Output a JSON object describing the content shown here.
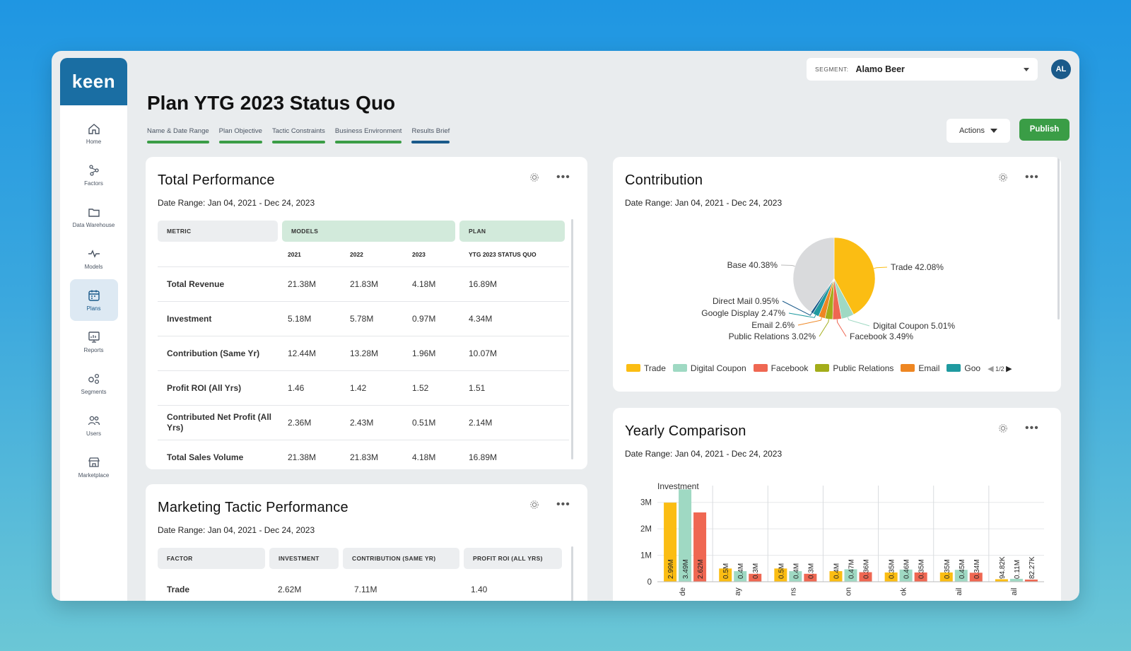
{
  "app": {
    "logo": "keen",
    "title": "Plan YTG 2023 Status Quo"
  },
  "sidebar": {
    "items": [
      {
        "label": "Home",
        "icon": "home-icon"
      },
      {
        "label": "Factors",
        "icon": "factors-icon"
      },
      {
        "label": "Data Warehouse",
        "icon": "folder-icon"
      },
      {
        "label": "Models",
        "icon": "pulse-icon"
      },
      {
        "label": "Plans",
        "icon": "calendar-icon",
        "active": true
      },
      {
        "label": "Reports",
        "icon": "report-icon"
      },
      {
        "label": "Segments",
        "icon": "segments-icon"
      },
      {
        "label": "Users",
        "icon": "users-icon"
      },
      {
        "label": "Marketplace",
        "icon": "store-icon"
      }
    ]
  },
  "steps": [
    {
      "label": "Name & Date Range",
      "status": "complete"
    },
    {
      "label": "Plan Objective",
      "status": "complete"
    },
    {
      "label": "Tactic Constraints",
      "status": "complete"
    },
    {
      "label": "Business Environment",
      "status": "complete"
    },
    {
      "label": "Results Brief",
      "status": "current"
    }
  ],
  "header": {
    "segment_label": "SEGMENT:",
    "segment_value": "Alamo Beer",
    "avatar": "AL",
    "actions_label": "Actions",
    "publish_label": "Publish"
  },
  "total_performance": {
    "title": "Total Performance",
    "date_range": "Date Range: Jan 04, 2021 - Dec 24, 2023",
    "headers": {
      "metric": "METRIC",
      "models": "MODELS",
      "plan": "PLAN"
    },
    "subheaders": [
      "2021",
      "2022",
      "2023",
      "YTG 2023 STATUS QUO"
    ],
    "rows": [
      {
        "metric": "Total Revenue",
        "values": [
          "21.38M",
          "21.83M",
          "4.18M",
          "16.89M"
        ]
      },
      {
        "metric": "Investment",
        "values": [
          "5.18M",
          "5.78M",
          "0.97M",
          "4.34M"
        ]
      },
      {
        "metric": "Contribution (Same Yr)",
        "values": [
          "12.44M",
          "13.28M",
          "1.96M",
          "10.07M"
        ]
      },
      {
        "metric": "Profit ROI (All Yrs)",
        "values": [
          "1.46",
          "1.42",
          "1.52",
          "1.51"
        ]
      },
      {
        "metric": "Contributed Net Profit (All Yrs)",
        "values": [
          "2.36M",
          "2.43M",
          "0.51M",
          "2.14M"
        ]
      },
      {
        "metric": "Total Sales Volume",
        "values": [
          "21.38M",
          "21.83M",
          "4.18M",
          "16.89M"
        ]
      }
    ]
  },
  "marketing": {
    "title": "Marketing Tactic Performance",
    "date_range": "Date Range: Jan 04, 2021 - Dec 24, 2023",
    "headers": [
      "FACTOR",
      "INVESTMENT",
      "CONTRIBUTION (SAME YR)",
      "PROFIT ROI (ALL YRS)"
    ],
    "first_row": [
      "Trade",
      "2.62M",
      "7.11M",
      "1.40"
    ]
  },
  "contribution": {
    "title": "Contribution",
    "date_range": "Date Range: Jan 04, 2021 - Dec 24, 2023",
    "legend_page": "1/2",
    "legend": [
      "Trade",
      "Digital Coupon",
      "Facebook",
      "Public Relations",
      "Email",
      "Goo"
    ]
  },
  "yearly": {
    "title": "Yearly Comparison",
    "date_range": "Date Range: Jan 04, 2021 - Dec 24, 2023"
  },
  "colors": {
    "trade": "#fbbd13",
    "digital_coupon": "#9fd9c3",
    "facebook": "#ef6752",
    "public_relations": "#a3ad1a",
    "email": "#ee8622",
    "google_display": "#1f9aa0",
    "direct_mail": "#1a5a8a",
    "base": "#d9dadc",
    "brand": "#1a6ea3",
    "publish": "#3a9d46"
  },
  "chart_data": [
    {
      "type": "pie",
      "title": "",
      "slices": [
        {
          "label": "Trade",
          "value": 42.08,
          "color": "#fbbd13"
        },
        {
          "label": "Digital Coupon",
          "value": 5.01,
          "color": "#9fd9c3"
        },
        {
          "label": "Facebook",
          "value": 3.49,
          "color": "#ef6752"
        },
        {
          "label": "Public Relations",
          "value": 3.02,
          "color": "#a3ad1a"
        },
        {
          "label": "Email",
          "value": 2.6,
          "color": "#ee8622"
        },
        {
          "label": "Google Display",
          "value": 2.47,
          "color": "#1f9aa0"
        },
        {
          "label": "Direct Mail",
          "value": 0.95,
          "color": "#1a5a8a"
        },
        {
          "label": "Base",
          "value": 40.38,
          "color": "#d9dadc"
        }
      ],
      "legend_placement": "bottom"
    },
    {
      "type": "bar",
      "title": "Investment",
      "ylim": [
        0,
        3.5
      ],
      "yticks": [
        "0",
        "1M",
        "2M",
        "3M"
      ],
      "series_colors": [
        "#fbbd13",
        "#9fd9c3",
        "#ef6752"
      ],
      "groups": [
        {
          "label": "de",
          "values": [
            2.99,
            3.49,
            2.62
          ],
          "labels": [
            "2.99M",
            "3.49M",
            "2.62M"
          ]
        },
        {
          "label": "ay",
          "values": [
            0.5,
            0.4,
            0.3
          ],
          "labels": [
            "0.5M",
            "0.4M",
            "0.3M"
          ]
        },
        {
          "label": "ns",
          "values": [
            0.5,
            0.4,
            0.3
          ],
          "labels": [
            "0.5M",
            "0.4M",
            "0.3M"
          ]
        },
        {
          "label": "on",
          "values": [
            0.4,
            0.47,
            0.36
          ],
          "labels": [
            "0.4M",
            "0.47M",
            "0.36M"
          ]
        },
        {
          "label": "ok",
          "values": [
            0.35,
            0.46,
            0.35
          ],
          "labels": [
            "0.35M",
            "0.46M",
            "0.35M"
          ]
        },
        {
          "label": "ail",
          "values": [
            0.35,
            0.45,
            0.34
          ],
          "labels": [
            "0.35M",
            "0.45M",
            "0.34M"
          ]
        },
        {
          "label": "ail",
          "values": [
            0.09482,
            0.11,
            0.08227
          ],
          "labels": [
            "94.82K",
            "0.11M",
            "82.27K"
          ]
        }
      ]
    }
  ]
}
